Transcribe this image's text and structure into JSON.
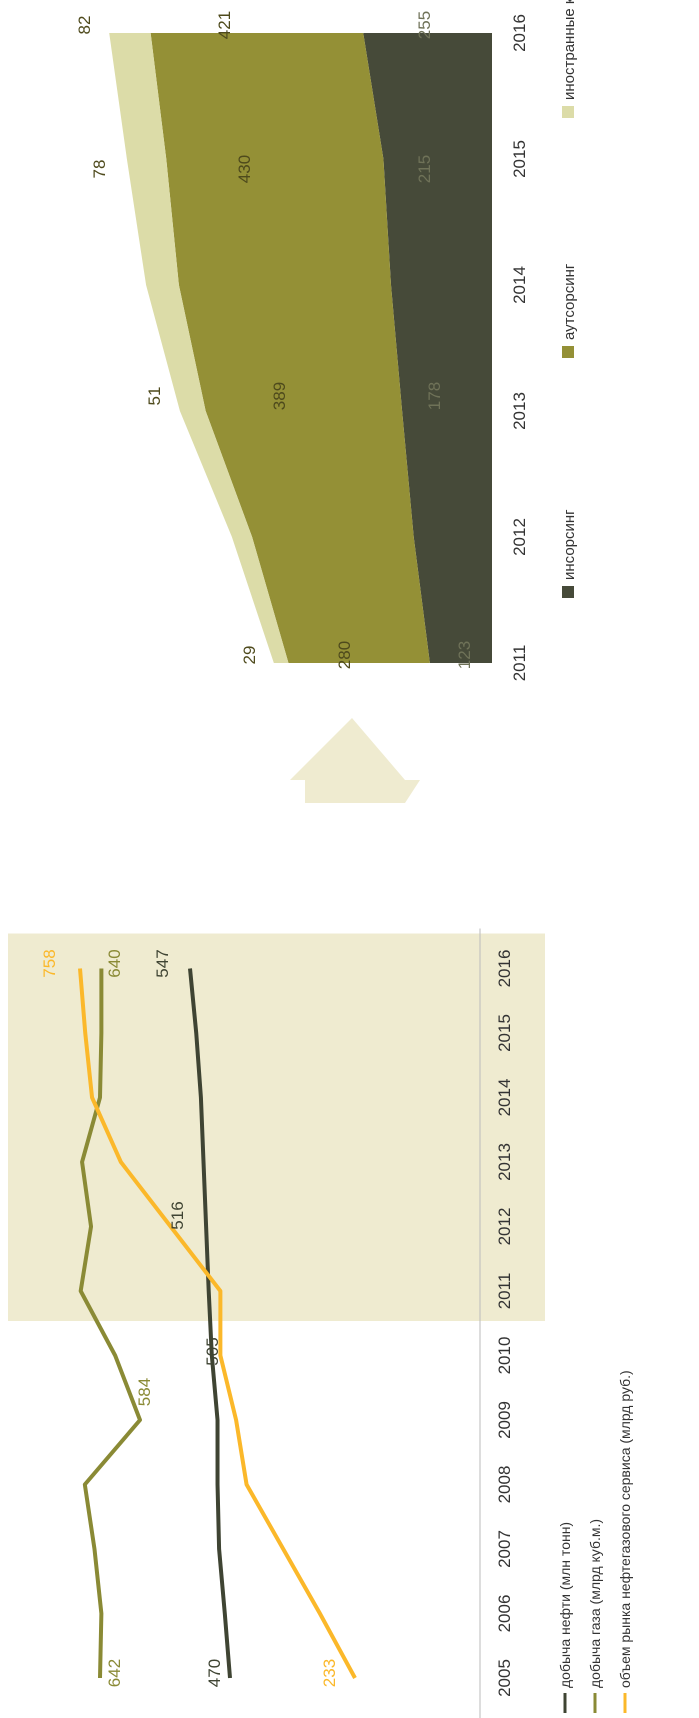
{
  "colors": {
    "oil": "#3f4433",
    "gas": "#8a8a35",
    "service": "#fbb82a",
    "insourcing": "#464a39",
    "outsourcing": "#949036",
    "foreign": "#dcdca8",
    "highlight": "#efebd0",
    "axis_text": "#333333"
  },
  "chart_data": [
    {
      "type": "line",
      "title": "",
      "xlabel": "",
      "ylabel": "",
      "x": [
        "2005",
        "2006",
        "2007",
        "2008",
        "2009",
        "2010",
        "2011",
        "2012",
        "2013",
        "2014",
        "2015",
        "2016"
      ],
      "highlight_range": [
        "2011",
        "2016"
      ],
      "series": [
        {
          "name": "добыча нефти (млн тонн)",
          "color_key": "oil",
          "values": [
            470,
            480,
            491,
            494,
            494,
            505,
            511,
            516,
            521,
            526,
            535,
            547
          ]
        },
        {
          "name": "добыча газа (млрд куб.м.)",
          "color_key": "gas",
          "values": [
            642,
            640,
            650,
            664,
            584,
            620,
            670,
            655,
            668,
            642,
            640,
            640
          ]
        },
        {
          "name": "объем рынка нефтегазового сервиса (млрд руб.)",
          "color_key": "service",
          "values": [
            233,
            300,
            370,
            440,
            460,
            490,
            490,
            585,
            680,
            735,
            748,
            758
          ]
        }
      ],
      "data_labels": [
        {
          "text": "470",
          "color_key": "oil"
        },
        {
          "text": "642",
          "color_key": "gas"
        },
        {
          "text": "233",
          "color_key": "service"
        },
        {
          "text": "584",
          "color_key": "gas"
        },
        {
          "text": "505",
          "color_key": "oil"
        },
        {
          "text": "516",
          "color_key": "oil"
        },
        {
          "text": "547",
          "color_key": "oil"
        },
        {
          "text": "640",
          "color_key": "gas"
        },
        {
          "text": "758",
          "color_key": "service"
        }
      ]
    },
    {
      "type": "area",
      "stacked": true,
      "title": "",
      "xlabel": "",
      "ylabel": "",
      "x": [
        "2011",
        "2012",
        "2013",
        "2014",
        "2015",
        "2016"
      ],
      "series": [
        {
          "name": "инсорсинг",
          "color_key": "insourcing",
          "values": [
            123,
            155,
            178,
            200,
            215,
            255
          ]
        },
        {
          "name": "аутсорсинг",
          "color_key": "outsourcing",
          "values": [
            280,
            320,
            389,
            420,
            430,
            421
          ]
        },
        {
          "name": "иностранные компании",
          "color_key": "foreign",
          "values": [
            29,
            40,
            51,
            65,
            78,
            82
          ]
        }
      ],
      "data_labels": [
        {
          "text": "123",
          "color_key": "insourcing"
        },
        {
          "text": "280",
          "color_key": "outsourcing"
        },
        {
          "text": "29",
          "color_key": "foreign"
        },
        {
          "text": "178",
          "color_key": "insourcing"
        },
        {
          "text": "389",
          "color_key": "outsourcing"
        },
        {
          "text": "51",
          "color_key": "foreign"
        },
        {
          "text": "215",
          "color_key": "insourcing"
        },
        {
          "text": "430",
          "color_key": "outsourcing"
        },
        {
          "text": "78",
          "color_key": "foreign"
        },
        {
          "text": "255",
          "color_key": "insourcing"
        },
        {
          "text": "421",
          "color_key": "outsourcing"
        },
        {
          "text": "82",
          "color_key": "foreign"
        }
      ],
      "legend_position": "bottom"
    }
  ]
}
